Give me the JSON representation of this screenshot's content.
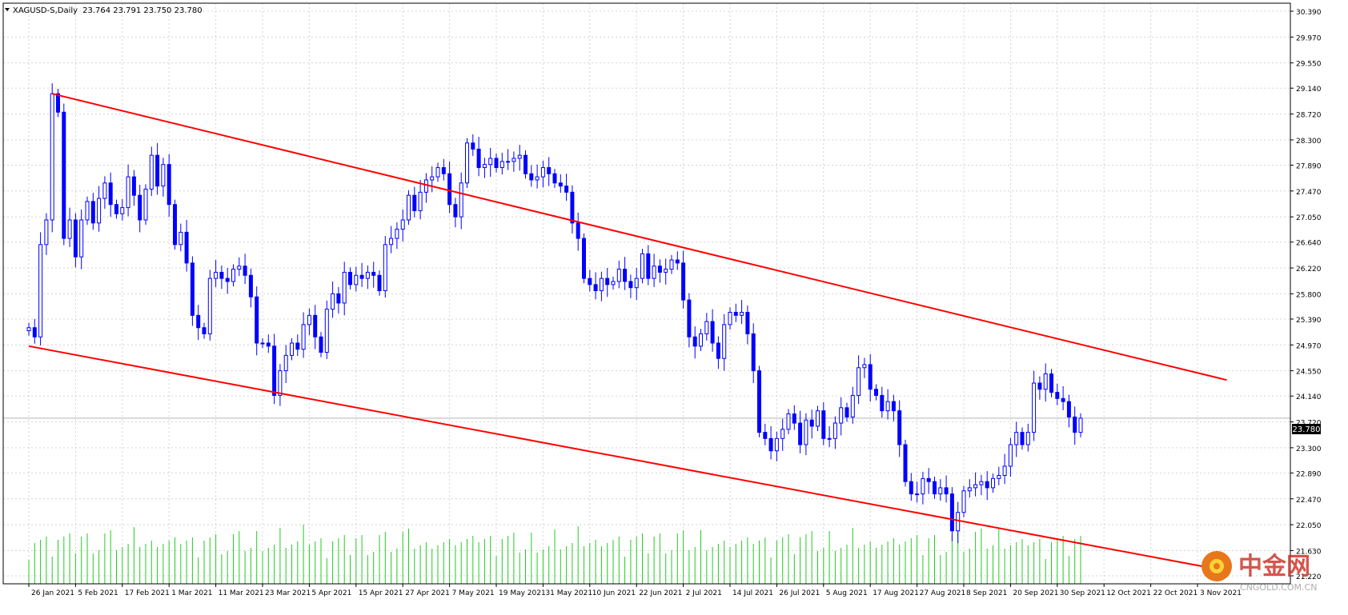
{
  "header": {
    "symbol": "XAGUSD-S",
    "timeframe": "Daily",
    "ohlc": "23.764 23.791 23.750 23.780"
  },
  "price_tag": "23.780",
  "colors": {
    "candle": "#0000ff",
    "volume": "#22cc22",
    "trendline": "#ff0000",
    "grid": "#d4d4d4",
    "axis": "#000000",
    "current_price_line": "#b4b4b4"
  },
  "watermark": {
    "brand": "中金网",
    "sub": "CNGOLD.COM.CN",
    "icon": "coin-flower-logo"
  },
  "chart_data": {
    "type": "candlestick",
    "instrument": "XAGUSD-S",
    "timeframe": "Daily",
    "y_ticks": [
      30.39,
      29.97,
      29.55,
      29.14,
      28.72,
      28.3,
      27.89,
      27.47,
      27.05,
      26.64,
      26.22,
      25.8,
      25.39,
      24.97,
      24.55,
      24.14,
      23.72,
      23.3,
      22.89,
      22.47,
      22.05,
      21.63,
      21.22
    ],
    "ylim": [
      21.22,
      30.39
    ],
    "grid": true,
    "date_labels": [
      {
        "label": "26 Jan 2021",
        "i": 0
      },
      {
        "label": "5 Feb 2021",
        "i": 8
      },
      {
        "label": "17 Feb 2021",
        "i": 16
      },
      {
        "label": "1 Mar 2021",
        "i": 24
      },
      {
        "label": "11 Mar 2021",
        "i": 32
      },
      {
        "label": "23 Mar 2021",
        "i": 40
      },
      {
        "label": "5 Apr 2021",
        "i": 48
      },
      {
        "label": "15 Apr 2021",
        "i": 56
      },
      {
        "label": "27 Apr 2021",
        "i": 64
      },
      {
        "label": "7 May 2021",
        "i": 72
      },
      {
        "label": "19 May 2021",
        "i": 80
      },
      {
        "label": "31 May 2021",
        "i": 88
      },
      {
        "label": "10 Jun 2021",
        "i": 96
      },
      {
        "label": "22 Jun 2021",
        "i": 104
      },
      {
        "label": "2 Jul 2021",
        "i": 112
      },
      {
        "label": "14 Jul 2021",
        "i": 120
      },
      {
        "label": "26 Jul 2021",
        "i": 128
      },
      {
        "label": "5 Aug 2021",
        "i": 136
      },
      {
        "label": "17 Aug 2021",
        "i": 144
      },
      {
        "label": "27 Aug 2021",
        "i": 152
      },
      {
        "label": "8 Sep 2021",
        "i": 160
      },
      {
        "label": "20 Sep 2021",
        "i": 168
      },
      {
        "label": "30 Sep 2021",
        "i": 176
      },
      {
        "label": "12 Oct 2021",
        "i": 184
      },
      {
        "label": "22 Oct 2021",
        "i": 192
      },
      {
        "label": "3 Nov 2021",
        "i": 200
      }
    ],
    "closes": [
      25.25,
      25.1,
      26.6,
      27.0,
      29.05,
      28.75,
      26.7,
      27.0,
      26.4,
      27.0,
      27.3,
      26.95,
      27.35,
      27.6,
      27.25,
      27.1,
      27.2,
      27.7,
      27.4,
      27.0,
      27.5,
      28.05,
      27.55,
      27.9,
      27.25,
      26.6,
      26.8,
      26.3,
      25.45,
      25.25,
      25.15,
      26.05,
      26.15,
      26.05,
      26.0,
      26.2,
      26.25,
      26.1,
      25.75,
      25.0,
      25.0,
      24.95,
      24.15,
      24.55,
      24.8,
      25.0,
      24.9,
      25.3,
      25.45,
      25.1,
      24.85,
      25.55,
      25.8,
      25.65,
      26.15,
      25.95,
      26.1,
      26.05,
      26.15,
      26.1,
      25.85,
      26.6,
      26.7,
      26.85,
      27.0,
      27.4,
      27.15,
      27.45,
      27.65,
      27.7,
      27.85,
      27.75,
      27.25,
      27.05,
      27.6,
      28.25,
      28.15,
      27.85,
      27.9,
      28.0,
      27.85,
      27.95,
      27.95,
      28.0,
      28.05,
      27.75,
      27.65,
      27.7,
      27.85,
      27.75,
      27.6,
      27.55,
      27.45,
      26.95,
      26.7,
      26.05,
      25.95,
      25.85,
      26.05,
      25.95,
      26.0,
      26.2,
      26.0,
      25.9,
      26.05,
      26.45,
      26.05,
      26.25,
      26.15,
      26.2,
      26.35,
      26.3,
      25.7,
      25.1,
      24.95,
      25.15,
      25.35,
      25.0,
      24.75,
      25.3,
      25.5,
      25.45,
      25.5,
      25.15,
      24.55,
      23.55,
      23.45,
      23.25,
      23.45,
      23.6,
      23.85,
      23.7,
      23.35,
      23.75,
      23.65,
      23.9,
      23.45,
      23.45,
      23.7,
      23.95,
      23.8,
      24.15,
      24.6,
      24.65,
      24.25,
      24.15,
      23.9,
      24.05,
      23.9,
      23.35,
      22.75,
      22.55,
      22.55,
      22.8,
      22.75,
      22.55,
      22.65,
      22.55,
      21.95,
      22.25,
      22.6,
      22.65,
      22.7,
      22.75,
      22.65,
      22.8,
      22.85,
      23.0,
      23.35,
      23.55,
      23.35,
      23.55,
      24.35,
      24.25,
      24.5,
      24.2,
      24.1,
      24.05,
      23.8,
      23.55,
      23.78
    ],
    "trendlines": [
      {
        "from": {
          "i": 4,
          "price": 29.05
        },
        "to": {
          "i": 205,
          "price": 24.4
        }
      },
      {
        "from": {
          "i": 0,
          "price": 24.95
        },
        "to": {
          "i": 205,
          "price": 21.3
        }
      }
    ],
    "series": [
      {
        "name": "XAGUSD-S",
        "kind": "candles"
      },
      {
        "name": "volume",
        "kind": "histogram"
      }
    ]
  }
}
